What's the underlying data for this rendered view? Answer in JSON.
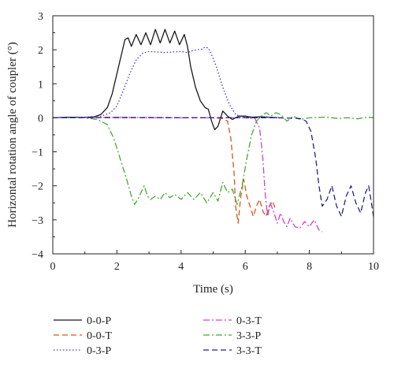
{
  "chart_data": {
    "type": "line",
    "xlabel": "Time (s)",
    "ylabel": "Horizontal rotation angle of coupler (°)",
    "xlim": [
      0,
      10
    ],
    "ylim": [
      -4,
      3
    ],
    "xticks": [
      "0",
      "2",
      "4",
      "6",
      "8",
      "10"
    ],
    "yticks": [
      "3",
      "2",
      "1",
      "0",
      "−1",
      "−2",
      "−3",
      "−4"
    ],
    "grid": false,
    "legend_position": "bottom",
    "series": [
      {
        "name": "0-0-P",
        "color": "#1a1a1a",
        "dash": "solid",
        "points": [
          [
            0,
            0
          ],
          [
            0.5,
            0.02
          ],
          [
            1,
            0.01
          ],
          [
            1.3,
            0.03
          ],
          [
            1.5,
            0.1
          ],
          [
            1.7,
            0.3
          ],
          [
            1.85,
            0.7
          ],
          [
            2,
            1.3
          ],
          [
            2.15,
            1.9
          ],
          [
            2.25,
            2.3
          ],
          [
            2.35,
            2.35
          ],
          [
            2.45,
            2.1
          ],
          [
            2.6,
            2.45
          ],
          [
            2.75,
            2.15
          ],
          [
            2.9,
            2.5
          ],
          [
            3.05,
            2.15
          ],
          [
            3.2,
            2.6
          ],
          [
            3.35,
            2.2
          ],
          [
            3.5,
            2.6
          ],
          [
            3.65,
            2.2
          ],
          [
            3.8,
            2.55
          ],
          [
            3.95,
            2.15
          ],
          [
            4.1,
            2.45
          ],
          [
            4.2,
            2.1
          ],
          [
            4.3,
            1.5
          ],
          [
            4.45,
            0.9
          ],
          [
            4.6,
            0.5
          ],
          [
            4.75,
            0.3
          ],
          [
            4.85,
            0.25
          ],
          [
            4.95,
            -0.1
          ],
          [
            5.05,
            -0.35
          ],
          [
            5.15,
            -0.25
          ],
          [
            5.3,
            0.2
          ],
          [
            5.45,
            0.05
          ],
          [
            5.6,
            -0.05
          ],
          [
            5.8,
            0.05
          ],
          [
            6.0,
            0.05
          ],
          [
            6.2,
            0.02
          ],
          [
            6.5,
            0.03
          ],
          [
            7,
            0.0
          ]
        ]
      },
      {
        "name": "0-0-T",
        "color": "#d9541a",
        "dash": "dashed",
        "points": [
          [
            0,
            0
          ],
          [
            1,
            0.01
          ],
          [
            2,
            0.0
          ],
          [
            3,
            0.01
          ],
          [
            4,
            0.0
          ],
          [
            5,
            0.0
          ],
          [
            5.3,
            -0.02
          ],
          [
            5.45,
            -0.1
          ],
          [
            5.55,
            -0.6
          ],
          [
            5.65,
            -1.6
          ],
          [
            5.7,
            -2.6
          ],
          [
            5.78,
            -3.1
          ],
          [
            5.85,
            -2.4
          ],
          [
            5.95,
            -1.8
          ],
          [
            6.05,
            -2.3
          ],
          [
            6.15,
            -2.6
          ],
          [
            6.25,
            -2.9
          ],
          [
            6.35,
            -2.6
          ],
          [
            6.45,
            -2.4
          ],
          [
            6.55,
            -2.75
          ],
          [
            6.65,
            -2.9
          ],
          [
            6.75,
            -2.6
          ],
          [
            6.85,
            -2.45
          ],
          [
            6.95,
            -2.7
          ]
        ]
      },
      {
        "name": "0-3-P",
        "color": "#3a3ad0",
        "dash": "dotted",
        "points": [
          [
            0,
            0
          ],
          [
            0.5,
            0.02
          ],
          [
            1,
            0.02
          ],
          [
            1.5,
            0.05
          ],
          [
            1.8,
            0.15
          ],
          [
            2,
            0.35
          ],
          [
            2.2,
            0.8
          ],
          [
            2.4,
            1.3
          ],
          [
            2.6,
            1.7
          ],
          [
            2.8,
            1.9
          ],
          [
            3,
            1.95
          ],
          [
            3.5,
            1.92
          ],
          [
            4,
            1.95
          ],
          [
            4.2,
            1.92
          ],
          [
            4.35,
            1.97
          ],
          [
            4.5,
            2.0
          ],
          [
            4.65,
            2.02
          ],
          [
            4.75,
            2.08
          ],
          [
            4.85,
            2.05
          ],
          [
            4.95,
            1.85
          ],
          [
            5.1,
            1.5
          ],
          [
            5.3,
            0.9
          ],
          [
            5.5,
            0.4
          ],
          [
            5.7,
            0.1
          ],
          [
            5.9,
            0.02
          ],
          [
            6.2,
            0.0
          ],
          [
            6.8,
            0.02
          ],
          [
            7.2,
            0.0
          ]
        ]
      },
      {
        "name": "0-3-T",
        "color": "#cc44cc",
        "dash": "dashdot",
        "points": [
          [
            0,
            0
          ],
          [
            2,
            0.01
          ],
          [
            4,
            0.0
          ],
          [
            6,
            0.0
          ],
          [
            6.3,
            -0.02
          ],
          [
            6.45,
            -0.3
          ],
          [
            6.55,
            -1.2
          ],
          [
            6.62,
            -2.2
          ],
          [
            6.7,
            -2.9
          ],
          [
            6.78,
            -2.5
          ],
          [
            6.9,
            -2.8
          ],
          [
            7.0,
            -3.1
          ],
          [
            7.1,
            -2.8
          ],
          [
            7.2,
            -3.05
          ],
          [
            7.3,
            -3.2
          ],
          [
            7.4,
            -2.95
          ],
          [
            7.55,
            -3.2
          ],
          [
            7.7,
            -3.25
          ],
          [
            7.85,
            -3.05
          ],
          [
            8.0,
            -3.2
          ],
          [
            8.15,
            -3.0
          ],
          [
            8.3,
            -3.3
          ],
          [
            8.4,
            -3.35
          ]
        ]
      },
      {
        "name": "3-3-P",
        "color": "#44aa33",
        "dash": "dashdot",
        "points": [
          [
            0,
            0
          ],
          [
            1,
            0.0
          ],
          [
            1.4,
            -0.05
          ],
          [
            1.7,
            -0.2
          ],
          [
            1.9,
            -0.6
          ],
          [
            2.1,
            -1.2
          ],
          [
            2.3,
            -1.8
          ],
          [
            2.45,
            -2.3
          ],
          [
            2.55,
            -2.55
          ],
          [
            2.65,
            -2.4
          ],
          [
            2.75,
            -2.2
          ],
          [
            2.85,
            -2.0
          ],
          [
            2.95,
            -2.3
          ],
          [
            3.05,
            -2.4
          ],
          [
            3.2,
            -2.3
          ],
          [
            3.35,
            -2.4
          ],
          [
            3.5,
            -2.2
          ],
          [
            3.65,
            -2.35
          ],
          [
            3.8,
            -2.25
          ],
          [
            4.0,
            -2.4
          ],
          [
            4.2,
            -2.2
          ],
          [
            4.4,
            -2.4
          ],
          [
            4.6,
            -2.2
          ],
          [
            4.8,
            -2.5
          ],
          [
            5.0,
            -2.2
          ],
          [
            5.15,
            -2.45
          ],
          [
            5.3,
            -1.9
          ],
          [
            5.45,
            -2.2
          ],
          [
            5.6,
            -2.1
          ],
          [
            5.75,
            -2.55
          ],
          [
            5.9,
            -2.0
          ],
          [
            6.05,
            -1.2
          ],
          [
            6.2,
            -0.5
          ],
          [
            6.35,
            -0.1
          ],
          [
            6.5,
            0.05
          ],
          [
            6.65,
            0.15
          ],
          [
            6.8,
            0.05
          ],
          [
            6.95,
            0.15
          ],
          [
            7.1,
            0.1
          ],
          [
            7.3,
            -0.1
          ],
          [
            7.5,
            0.05
          ],
          [
            7.7,
            -0.05
          ],
          [
            8.0,
            0.0
          ],
          [
            8.5,
            0.02
          ],
          [
            8.9,
            -0.02
          ],
          [
            9.2,
            0.0
          ],
          [
            9.5,
            -0.03
          ],
          [
            9.8,
            0.02
          ],
          [
            10,
            0.0
          ]
        ]
      },
      {
        "name": "3-3-T",
        "color": "#22228a",
        "dash": "dashed",
        "points": [
          [
            0,
            0
          ],
          [
            2,
            0.01
          ],
          [
            4,
            0.0
          ],
          [
            6,
            0.0
          ],
          [
            7,
            0.0
          ],
          [
            7.7,
            -0.02
          ],
          [
            7.9,
            -0.1
          ],
          [
            8.05,
            -0.4
          ],
          [
            8.2,
            -1.2
          ],
          [
            8.3,
            -2.0
          ],
          [
            8.4,
            -2.6
          ],
          [
            8.55,
            -2.4
          ],
          [
            8.7,
            -2.0
          ],
          [
            8.85,
            -2.6
          ],
          [
            9.0,
            -2.9
          ],
          [
            9.15,
            -2.3
          ],
          [
            9.3,
            -2.0
          ],
          [
            9.45,
            -2.5
          ],
          [
            9.6,
            -2.8
          ],
          [
            9.75,
            -2.2
          ],
          [
            9.85,
            -2.0
          ],
          [
            10.0,
            -2.9
          ]
        ]
      }
    ]
  }
}
